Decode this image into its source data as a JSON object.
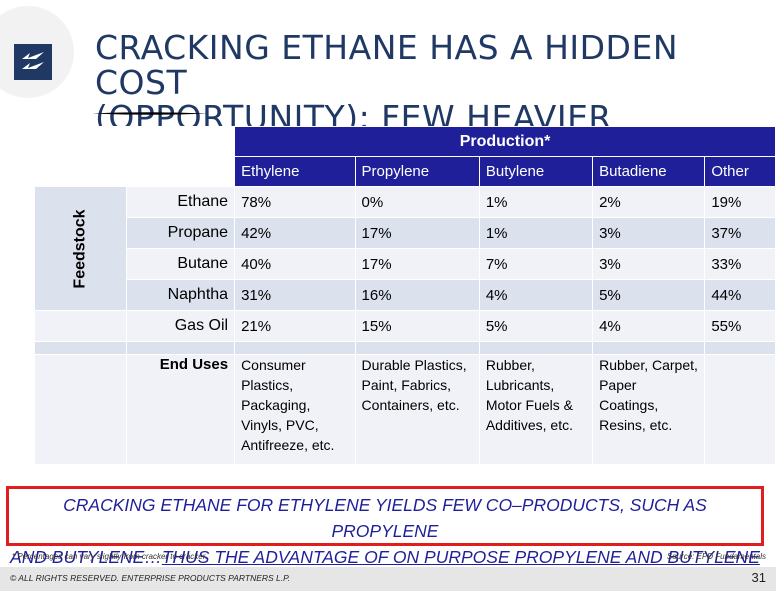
{
  "title": {
    "line1": "CRACKING ETHANE HAS A HIDDEN COST",
    "line2": "(OPPORTUNITY):  FEW HEAVIER OLEFINS"
  },
  "brand": {
    "logo_color": "#1f3864",
    "accent": "#1f1f99",
    "callout_border": "#e01e1e"
  },
  "table": {
    "production_header": "Production*",
    "feedstock_label": "Feedstock",
    "columns": [
      "Ethylene",
      "Propylene",
      "Butylene",
      "Butadiene",
      "Other"
    ],
    "rows": [
      {
        "feed": "Ethane",
        "values": [
          "78%",
          "0%",
          "1%",
          "2%",
          "19%"
        ]
      },
      {
        "feed": "Propane",
        "values": [
          "42%",
          "17%",
          "1%",
          "3%",
          "37%"
        ]
      },
      {
        "feed": "Butane",
        "values": [
          "40%",
          "17%",
          "7%",
          "3%",
          "33%"
        ]
      },
      {
        "feed": "Naphtha",
        "values": [
          "31%",
          "16%",
          "4%",
          "5%",
          "44%"
        ]
      },
      {
        "feed": "Gas Oil",
        "values": [
          "21%",
          "15%",
          "5%",
          "4%",
          "55%"
        ]
      }
    ],
    "end_uses_label": "End Uses",
    "end_uses": [
      "Consumer Plastics, Packaging, Vinyls, PVC, Antifreeze, etc.",
      "Durable Plastics,  Paint, Fabrics, Containers, etc.",
      "Rubber, Lubricants, Motor Fuels & Additives, etc.",
      "Rubber, Carpet, Paper Coatings, Resins, etc.",
      ""
    ]
  },
  "callout": {
    "line1": "CRACKING ETHANE FOR ETHYLENE YIELDS FEW CO–PRODUCTS, SUCH AS PROPYLENE",
    "line2_plain": "AND BUTYLENE…",
    "line2_underlined": "THUS THE ADVANTAGE OF ON PURPOSE PROPYLENE AND BUTYLENE"
  },
  "footnote": "* Percentages can vary slightly from cracker to cracker.",
  "source": "Source:  EPD Fundamentals",
  "footer": {
    "copyright": "© ALL RIGHTS RESERVED. ENTERPRISE PRODUCTS PARTNERS L.P.",
    "page_number": "31"
  }
}
